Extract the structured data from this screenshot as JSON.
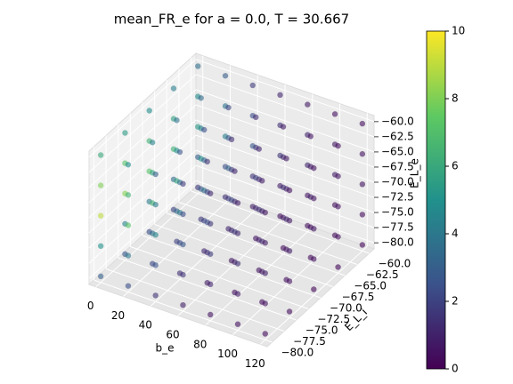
{
  "chart_data": {
    "type": "scatter3d",
    "title": "mean_FR_e for a = 0.0, T = 30.667",
    "xlabel": "b_e",
    "ylabel": "E_L_i",
    "zlabel": "E_L_e",
    "colormap": "viridis",
    "alpha": 0.6,
    "xlim": [
      -5,
      125
    ],
    "ylim": [
      -81,
      -59
    ],
    "zlim": [
      -81,
      -59
    ],
    "clim": [
      0,
      10
    ],
    "xticks": [
      0,
      20,
      40,
      60,
      80,
      100,
      120
    ],
    "yticks": [
      {
        "value": -80,
        "label": "−80.0"
      },
      {
        "value": -77.5,
        "label": "−77.5"
      },
      {
        "value": -75,
        "label": "−75.0"
      },
      {
        "value": -72.5,
        "label": "−72.5"
      },
      {
        "value": -70,
        "label": "−70.0"
      },
      {
        "value": -67.5,
        "label": "−67.5"
      },
      {
        "value": -65,
        "label": "−65.0"
      },
      {
        "value": -62.5,
        "label": "−62.5"
      },
      {
        "value": -60,
        "label": "−60.0"
      }
    ],
    "zticks": [
      {
        "value": -80,
        "label": "−80.0"
      },
      {
        "value": -77.5,
        "label": "−77.5"
      },
      {
        "value": -75,
        "label": "−75.0"
      },
      {
        "value": -72.5,
        "label": "−72.5"
      },
      {
        "value": -70,
        "label": "−70.0"
      },
      {
        "value": -67.5,
        "label": "−67.5"
      },
      {
        "value": -65,
        "label": "−65.0"
      },
      {
        "value": -62.5,
        "label": "−62.5"
      },
      {
        "value": -60,
        "label": "−60.0"
      }
    ],
    "cticks": [
      0,
      2,
      4,
      6,
      8,
      10
    ],
    "x": [
      0,
      0,
      0,
      0,
      0,
      0,
      0,
      0,
      0,
      0,
      0,
      0,
      0,
      0,
      0,
      0,
      0,
      0,
      0,
      0,
      0,
      0,
      0,
      0,
      0,
      20,
      20,
      20,
      20,
      20,
      20,
      20,
      20,
      20,
      20,
      20,
      20,
      20,
      20,
      20,
      20,
      20,
      20,
      20,
      20,
      20,
      20,
      20,
      20,
      20,
      40,
      40,
      40,
      40,
      40,
      40,
      40,
      40,
      40,
      40,
      40,
      40,
      40,
      40,
      40,
      40,
      40,
      40,
      40,
      40,
      40,
      40,
      40,
      40,
      40,
      60,
      60,
      60,
      60,
      60,
      60,
      60,
      60,
      60,
      60,
      60,
      60,
      60,
      60,
      60,
      60,
      60,
      60,
      60,
      60,
      60,
      60,
      60,
      60,
      60,
      80,
      80,
      80,
      80,
      80,
      80,
      80,
      80,
      80,
      80,
      80,
      80,
      80,
      80,
      80,
      80,
      80,
      80,
      80,
      80,
      80,
      80,
      80,
      80,
      80,
      100,
      100,
      100,
      100,
      100,
      100,
      100,
      100,
      100,
      100,
      100,
      100,
      100,
      100,
      100,
      100,
      100,
      100,
      100,
      100,
      100,
      100,
      100,
      100,
      100,
      120,
      120,
      120,
      120,
      120,
      120,
      120,
      120,
      120,
      120,
      120,
      120,
      120,
      120,
      120,
      120,
      120,
      120,
      120,
      120,
      120,
      120,
      120,
      120,
      120
    ],
    "y": [
      -80,
      -80,
      -80,
      -80,
      -80,
      -75,
      -75,
      -75,
      -75,
      -75,
      -70,
      -70,
      -70,
      -70,
      -70,
      -65,
      -65,
      -65,
      -65,
      -65,
      -60,
      -60,
      -60,
      -60,
      -60,
      -80,
      -80,
      -80,
      -80,
      -80,
      -75,
      -75,
      -75,
      -75,
      -75,
      -70,
      -70,
      -70,
      -70,
      -70,
      -65,
      -65,
      -65,
      -65,
      -65,
      -60,
      -60,
      -60,
      -60,
      -60,
      -80,
      -80,
      -80,
      -80,
      -80,
      -75,
      -75,
      -75,
      -75,
      -75,
      -70,
      -70,
      -70,
      -70,
      -70,
      -65,
      -65,
      -65,
      -65,
      -65,
      -60,
      -60,
      -60,
      -60,
      -60,
      -80,
      -80,
      -80,
      -80,
      -80,
      -75,
      -75,
      -75,
      -75,
      -75,
      -70,
      -70,
      -70,
      -70,
      -70,
      -65,
      -65,
      -65,
      -65,
      -65,
      -60,
      -60,
      -60,
      -60,
      -60,
      -80,
      -80,
      -80,
      -80,
      -80,
      -75,
      -75,
      -75,
      -75,
      -75,
      -70,
      -70,
      -70,
      -70,
      -70,
      -65,
      -65,
      -65,
      -65,
      -65,
      -60,
      -60,
      -60,
      -60,
      -60,
      -80,
      -80,
      -80,
      -80,
      -80,
      -75,
      -75,
      -75,
      -75,
      -75,
      -70,
      -70,
      -70,
      -70,
      -70,
      -65,
      -65,
      -65,
      -65,
      -65,
      -60,
      -60,
      -60,
      -60,
      -60,
      -80,
      -80,
      -80,
      -80,
      -80,
      -75,
      -75,
      -75,
      -75,
      -75,
      -70,
      -70,
      -70,
      -70,
      -70,
      -65,
      -65,
      -65,
      -65,
      -65,
      -60,
      -60,
      -60,
      -60,
      -60
    ],
    "z": [
      -80,
      -75,
      -70,
      -65,
      -60,
      -80,
      -75,
      -70,
      -65,
      -60,
      -80,
      -75,
      -70,
      -65,
      -60,
      -80,
      -75,
      -70,
      -65,
      -60,
      -80,
      -75,
      -70,
      -65,
      -60,
      -80,
      -75,
      -70,
      -65,
      -60,
      -80,
      -75,
      -70,
      -65,
      -60,
      -80,
      -75,
      -70,
      -65,
      -60,
      -80,
      -75,
      -70,
      -65,
      -60,
      -80,
      -75,
      -70,
      -65,
      -60,
      -80,
      -75,
      -70,
      -65,
      -60,
      -80,
      -75,
      -70,
      -65,
      -60,
      -80,
      -75,
      -70,
      -65,
      -60,
      -80,
      -75,
      -70,
      -65,
      -60,
      -80,
      -75,
      -70,
      -65,
      -60,
      -80,
      -75,
      -70,
      -65,
      -60,
      -80,
      -75,
      -70,
      -65,
      -60,
      -80,
      -75,
      -70,
      -65,
      -60,
      -80,
      -75,
      -70,
      -65,
      -60,
      -80,
      -75,
      -70,
      -65,
      -60,
      -80,
      -75,
      -70,
      -65,
      -60,
      -80,
      -75,
      -70,
      -65,
      -60,
      -80,
      -75,
      -70,
      -65,
      -60,
      -80,
      -75,
      -70,
      -65,
      -60,
      -80,
      -75,
      -70,
      -65,
      -60,
      -80,
      -75,
      -70,
      -65,
      -60,
      -80,
      -75,
      -70,
      -65,
      -60,
      -80,
      -75,
      -70,
      -65,
      -60,
      -80,
      -75,
      -70,
      -65,
      -60,
      -80,
      -75,
      -70,
      -65,
      -60,
      -80,
      -75,
      -70,
      -65,
      -60,
      -80,
      -75,
      -70,
      -65,
      -60,
      -80,
      -75,
      -70,
      -65,
      -60,
      -80,
      -75,
      -70,
      -65,
      -60,
      -80,
      -75,
      -70,
      -65,
      -60
    ],
    "values": [
      3,
      5,
      9,
      8,
      6,
      2.7,
      4.5,
      8.1,
      7.2,
      5.4,
      2.4,
      4,
      7.2,
      6.4,
      4.8,
      2.1,
      3.5,
      6.3,
      5.6,
      4.2,
      1.8,
      3,
      5.4,
      4.8,
      3.6,
      2.4,
      4,
      7.2,
      6.4,
      4.8,
      2.2,
      3.6,
      6.5,
      5.8,
      4.3,
      1.9,
      3.2,
      5.8,
      5.1,
      3.8,
      1.7,
      2.8,
      5,
      4.5,
      3.4,
      1.4,
      2.4,
      4.3,
      3.8,
      2.9,
      1.5,
      2.5,
      4.5,
      4,
      3,
      1.4,
      2.3,
      4.1,
      3.6,
      2.7,
      1.2,
      2,
      3.6,
      3.2,
      2.4,
      1.1,
      1.8,
      3.2,
      2.8,
      2.1,
      0.9,
      1.5,
      2.7,
      2.4,
      1.8,
      0.9,
      1.5,
      2.7,
      2.4,
      1.8,
      0.8,
      1.4,
      2.4,
      2.2,
      1.6,
      0.7,
      1.2,
      2.2,
      1.9,
      1.4,
      0.6,
      1.1,
      1.9,
      1.7,
      1.3,
      0.5,
      0.9,
      1.6,
      1.4,
      1.1,
      0.6,
      1,
      1.8,
      1.6,
      1.2,
      0.5,
      0.9,
      1.6,
      1.4,
      1.1,
      0.5,
      0.8,
      1.4,
      1.3,
      1,
      0.4,
      0.7,
      1.3,
      1.1,
      0.8,
      0.4,
      0.6,
      1.1,
      1,
      0.7,
      0.5,
      0.8,
      1.4,
      1.2,
      0.9,
      0.4,
      0.7,
      1.2,
      1.1,
      0.8,
      0.4,
      0.6,
      1.1,
      1,
      0.7,
      0.3,
      0.5,
      0.9,
      0.8,
      0.6,
      0.3,
      0.5,
      0.8,
      0.7,
      0.5,
      0.3,
      0.5,
      0.9,
      0.8,
      0.6,
      0.3,
      0.5,
      0.8,
      0.7,
      0.5,
      0.2,
      0.4,
      0.7,
      0.6,
      0.5,
      0.2,
      0.4,
      0.6,
      0.6,
      0.4,
      0.2,
      0.3,
      0.5,
      0.5,
      0.4
    ]
  }
}
